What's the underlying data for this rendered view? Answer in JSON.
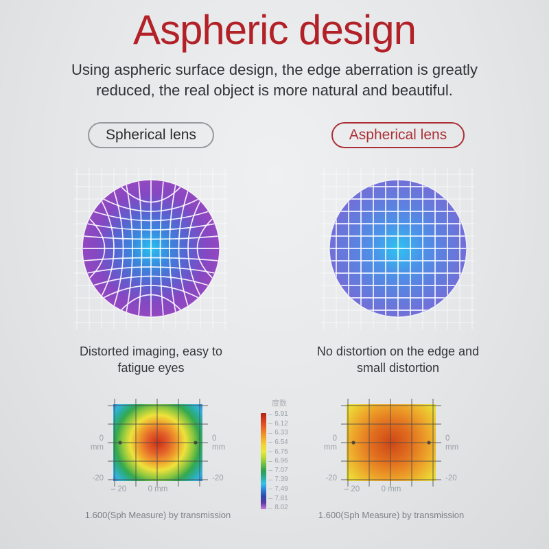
{
  "header": {
    "title": "Aspheric design",
    "subtitle": "Using aspheric surface design, the edge aberration is greatly reduced, the real object is more natural and beautiful."
  },
  "comparison": {
    "spherical": {
      "pill_label": "Spherical lens",
      "caption": "Distorted imaging, easy to fatigue eyes"
    },
    "aspherical": {
      "pill_label": "Aspherical lens",
      "caption": "No distortion on the edge and small distortion"
    }
  },
  "heatmap_axis": {
    "y_zero": "0",
    "y_unit": "mm",
    "y_neg20": "-20",
    "x_left": "– 20",
    "x_center": "0 mm"
  },
  "heatmaps": {
    "spherical": {
      "caption": "1.600(Sph Measure) by transmission"
    },
    "aspherical": {
      "caption": "1.600(Sph Measure) by transmission"
    }
  },
  "legend": {
    "title": "度数",
    "values": [
      "5.91",
      "6.12",
      "6.33",
      "6.54",
      "6.75",
      "6.96",
      "7.07",
      "7.39",
      "7.49",
      "7.81",
      "8.02"
    ],
    "colors": [
      "#b02418",
      "#d23a1e",
      "#e65a25",
      "#ef8428",
      "#f2ad2c",
      "#f2d534",
      "#e8ea3c",
      "#b5d838",
      "#6fbe44",
      "#2f9e4d",
      "#2aab96",
      "#38c3e6",
      "#2f7ed8",
      "#2c49a8",
      "#5b3aa6",
      "#c87fd6"
    ]
  },
  "colors": {
    "accent_red": "#b22127",
    "pill_red": "#ab3036",
    "pill_gray_border": "#97999c",
    "body_text": "#2f3134",
    "muted_text": "#7d8185",
    "axis_text": "#9aa1a7"
  },
  "figures": {
    "lens_spherical": {
      "distorted": true,
      "gradient": [
        [
          "0",
          "#27c2f0"
        ],
        [
          "0.28",
          "#3a86de"
        ],
        [
          "0.55",
          "#5b60cf"
        ],
        [
          "0.8",
          "#8548c2"
        ],
        [
          "1",
          "#9348c0"
        ]
      ]
    },
    "lens_aspherical": {
      "distorted": false,
      "gradient": [
        [
          "0",
          "#2cc4f1"
        ],
        [
          "0.35",
          "#4b93e9"
        ],
        [
          "0.68",
          "#5f7ede"
        ],
        [
          "1",
          "#726fd7"
        ]
      ]
    },
    "heatmap_spherical": {
      "r": 90,
      "stops": [
        [
          "0",
          "#cd2f16"
        ],
        [
          "0.18",
          "#e4622a"
        ],
        [
          "0.33",
          "#f0a42c"
        ],
        [
          "0.45",
          "#eee23b"
        ],
        [
          "0.58",
          "#8cc63f"
        ],
        [
          "0.68",
          "#33a94e"
        ],
        [
          "0.78",
          "#2aae9e"
        ],
        [
          "0.87",
          "#33b4e0"
        ],
        [
          "1",
          "#2f66d4"
        ]
      ]
    },
    "heatmap_aspherical": {
      "r": 100,
      "stops": [
        [
          "0",
          "#cc4617"
        ],
        [
          "0.3",
          "#e2701f"
        ],
        [
          "0.55",
          "#eda42a"
        ],
        [
          "0.78",
          "#ecd936"
        ],
        [
          "0.93",
          "#d8dd3a"
        ],
        [
          "1",
          "#a3cc3c"
        ]
      ]
    }
  },
  "chart_data": [
    {
      "type": "heatmap",
      "name": "spherical-lens-power-map",
      "title": "1.600(Sph Measure) by transmission",
      "x_ticks": [
        "– 20",
        "0 mm"
      ],
      "y_ticks_left": [
        "0 mm",
        "-20"
      ],
      "y_ticks_right": [
        "0 mm",
        "-20"
      ],
      "colorbar_label": "度数",
      "colorbar_ticks": [
        5.91,
        6.12,
        6.33,
        6.54,
        6.75,
        6.96,
        7.07,
        7.39,
        7.49,
        7.81,
        8.02
      ],
      "pattern": "radial: ~5.91 (red) at center decreasing through orange/yellow/green to ~7.8-8.0 (blue) at corners; strong edge power variation",
      "legend_position": "right of plot (shared center colorbar)",
      "grid": true
    },
    {
      "type": "heatmap",
      "name": "aspherical-lens-power-map",
      "title": "1.600(Sph Measure) by transmission",
      "x_ticks": [
        "– 20",
        "0 mm"
      ],
      "y_ticks_left": [
        "0 mm",
        "-20"
      ],
      "y_ticks_right": [
        "0 mm",
        "-20"
      ],
      "colorbar_label": "度数",
      "colorbar_ticks": [
        5.91,
        6.12,
        6.33,
        6.54,
        6.75,
        6.96,
        7.07,
        7.39,
        7.49,
        7.81,
        8.02
      ],
      "pattern": "radial: center ~6.1 (orange-red), edges ~6.5 (yellow), corners ~6.9 (green); small power variation",
      "legend_position": "left of plot (shared center colorbar)",
      "grid": true
    }
  ]
}
